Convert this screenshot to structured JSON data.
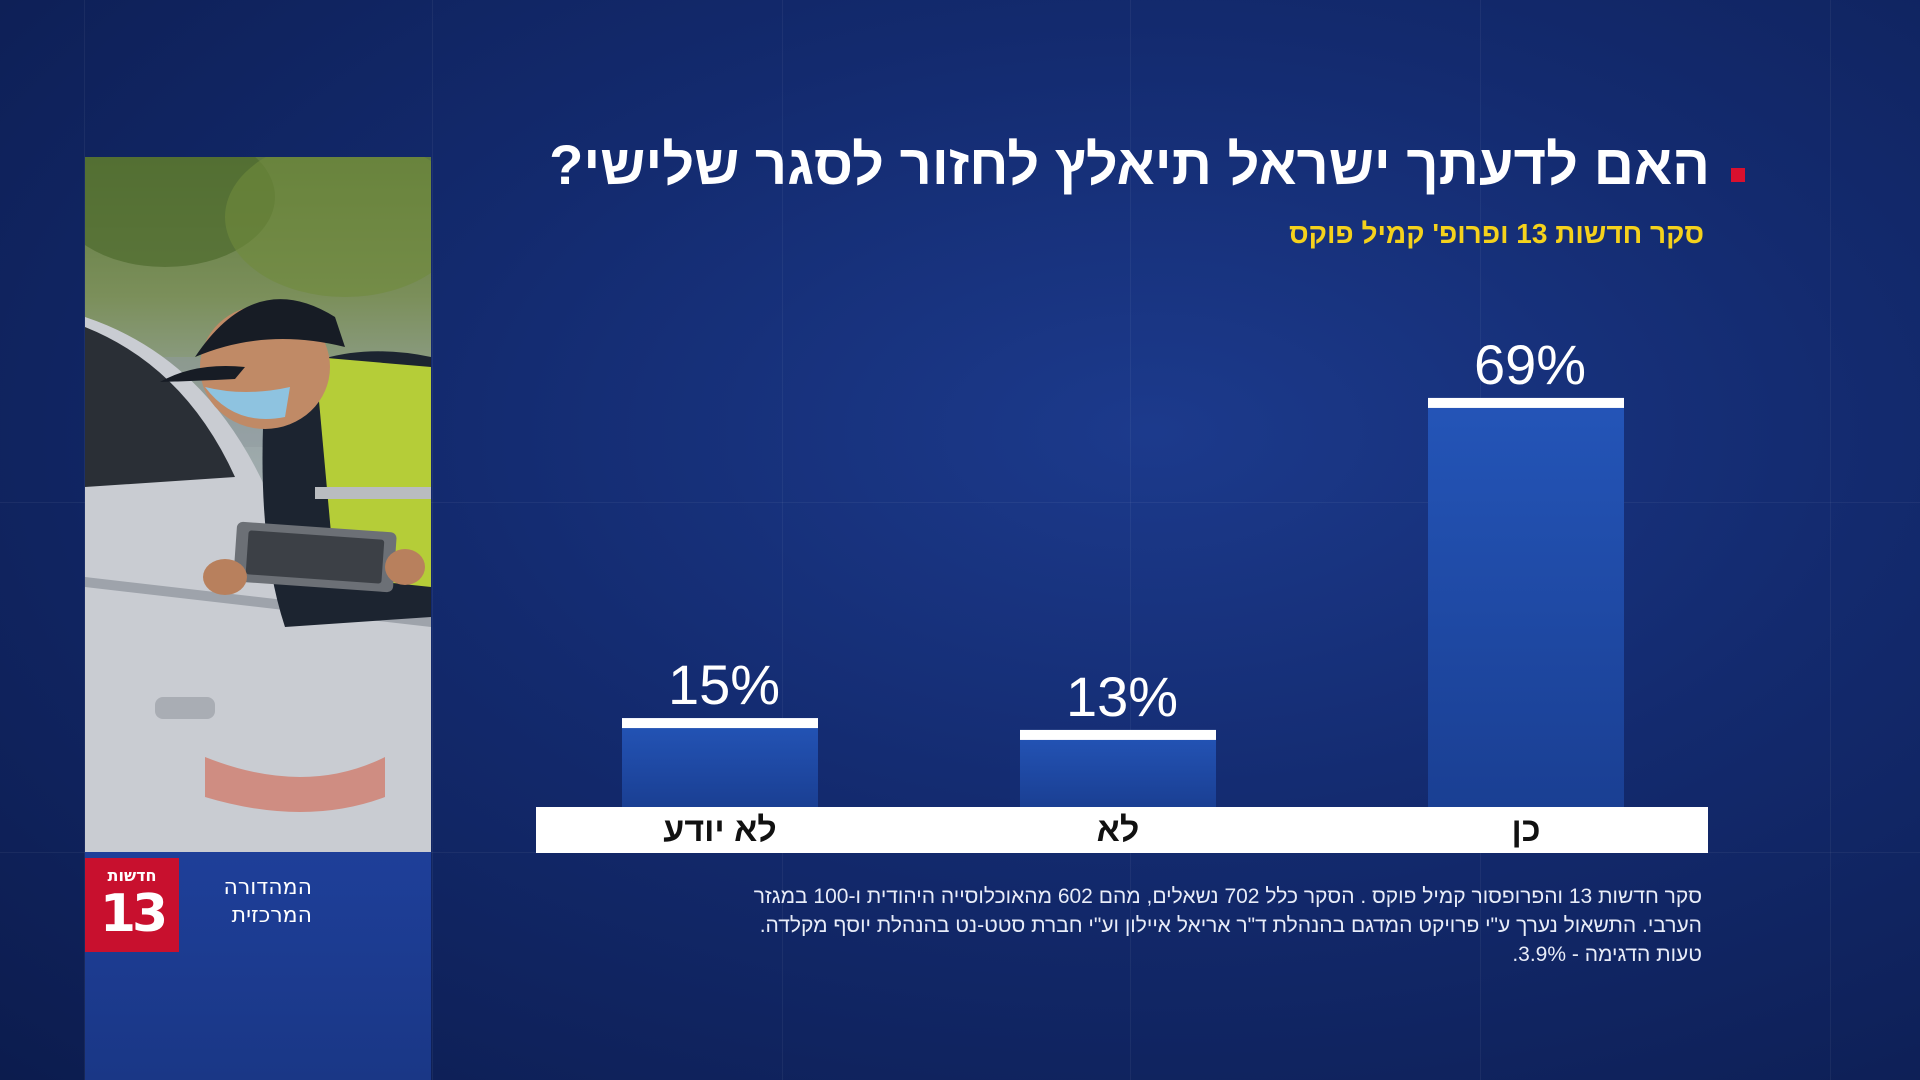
{
  "title": "האם לדעתך ישראל תיאלץ לחזור לסגר שלישי?",
  "subtitle": "סקר חדשות 13 ופרופ' קמיל פוקס",
  "chart_data": {
    "type": "bar",
    "title": "האם לדעתך ישראל תיאלץ לחזור לסגר שלישי?",
    "categories": [
      "לא יודע",
      "לא",
      "כן"
    ],
    "values": [
      15,
      13,
      69
    ],
    "value_labels": [
      "15%",
      "13%",
      "69%"
    ],
    "unit": "%",
    "ylim": [
      0,
      70
    ],
    "grid": false,
    "legend": "none"
  },
  "footnote": {
    "line1": "סקר חדשות 13 והפרופסור קמיל פוקס . הסקר כלל 702 נשאלים, מהם 602 מהאוכלוסייה היהודית ו-100 במגזר",
    "line2": "הערבי. התשאול נערך ע\"י פרויקט המדגם בהנהלת ד\"ר אריאל איילון וע\"י חברת סטט-נט בהנהלת יוסף מקלדה.",
    "line3": "טעות הדגימה - 3.9%."
  },
  "logo": {
    "small": "חדשות",
    "number": "13"
  },
  "edition": {
    "line1": "המהדורה",
    "line2": "המרכזית"
  },
  "colors": {
    "bar": "#1f4fae",
    "bar_top": "#ffffff",
    "accent": "#d8102e",
    "subtitle": "#f5d21c"
  }
}
